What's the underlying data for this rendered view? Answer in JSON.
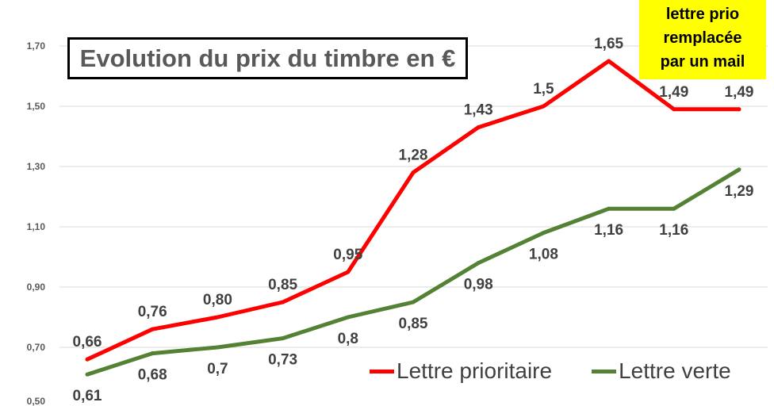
{
  "chart_data": {
    "type": "line",
    "title": "Evolution du prix du timbre en €",
    "xlabel": "",
    "ylabel": "",
    "ylim": [
      0.5,
      1.7
    ],
    "y_ticks": [
      {
        "value": 1.7,
        "label": "1,70"
      },
      {
        "value": 1.5,
        "label": "1,50"
      },
      {
        "value": 1.3,
        "label": "1,30"
      },
      {
        "value": 1.1,
        "label": "1,10"
      },
      {
        "value": 0.9,
        "label": "0,90"
      },
      {
        "value": 0.7,
        "label": "0,70"
      },
      {
        "value": 0.5,
        "label": "0,50"
      }
    ],
    "grid": true,
    "legend": "bottom-right",
    "series": [
      {
        "name": "Lettre prioritaire",
        "color": "#ff0000",
        "data_labels": "above",
        "values": [
          0.66,
          0.76,
          0.8,
          0.85,
          0.95,
          1.28,
          1.43,
          1.5,
          1.65,
          1.49,
          1.49
        ],
        "labels": [
          "0,66",
          "0,76",
          "0,80",
          "0,85",
          "0,95",
          "1,28",
          "1,43",
          "1,5",
          "1,65",
          "1,49",
          "1,49"
        ]
      },
      {
        "name": "Lettre verte",
        "color": "#548235",
        "data_labels": "below",
        "values": [
          0.61,
          0.68,
          0.7,
          0.73,
          0.8,
          0.85,
          0.98,
          1.08,
          1.16,
          1.16,
          1.29
        ],
        "labels": [
          "0,61",
          "0,68",
          "0,7",
          "0,73",
          "0,8",
          "0,85",
          "0,98",
          "1,08",
          "1,16",
          "1,16",
          "1,29"
        ]
      }
    ],
    "annotation": {
      "lines": [
        "lettre prio",
        "remplacée",
        "par un mail"
      ],
      "background": "#ffff00"
    }
  }
}
